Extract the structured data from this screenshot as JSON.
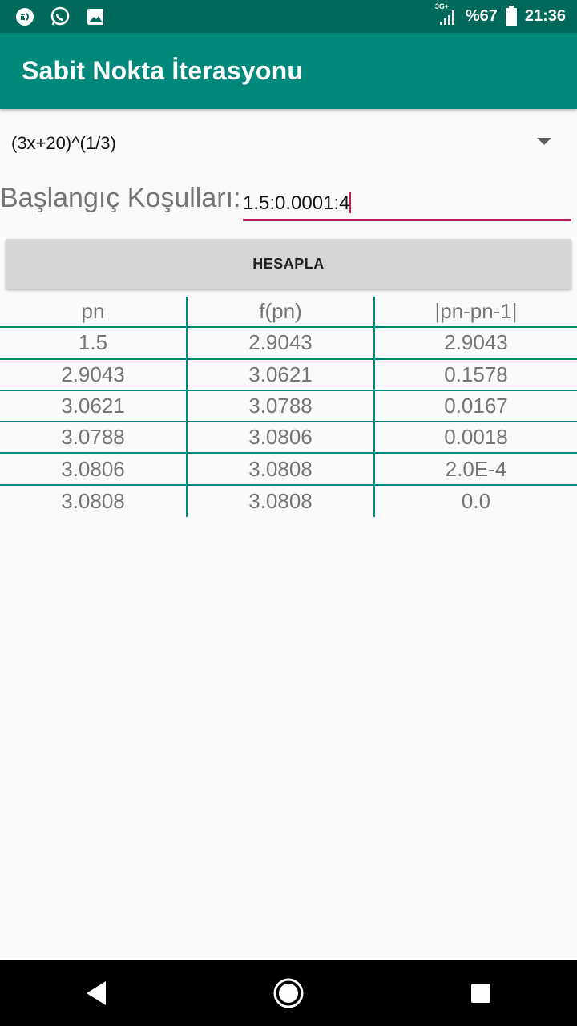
{
  "status_bar": {
    "battery_text": "%67",
    "time": "21:36",
    "network": "3G+",
    "left_icons": [
      "chat-bubble-icon",
      "whatsapp-icon",
      "image-icon"
    ]
  },
  "app_bar": {
    "title": "Sabit Nokta İterasyonu",
    "color": "#00897b"
  },
  "spinner": {
    "selected": "(3x+20)^(1/3)"
  },
  "conditions": {
    "label": "Başlangıç Koşulları:",
    "value": "1.5:0.0001:4"
  },
  "button": {
    "label": "HESAPLA"
  },
  "table": {
    "headers": [
      "pn",
      "f(pn)",
      "|pn-pn-1|"
    ],
    "rows": [
      [
        "1.5",
        "2.9043",
        "2.9043"
      ],
      [
        "2.9043",
        "3.0621",
        "0.1578"
      ],
      [
        "3.0621",
        "3.0788",
        "0.0167"
      ],
      [
        "3.0788",
        "3.0806",
        "0.0018"
      ],
      [
        "3.0806",
        "3.0808",
        "2.0E-4"
      ],
      [
        "3.0808",
        "3.0808",
        "0.0"
      ]
    ]
  },
  "colors": {
    "status_bar": "#00695c",
    "accent": "#c2185b",
    "table_lines": "#00897b"
  }
}
